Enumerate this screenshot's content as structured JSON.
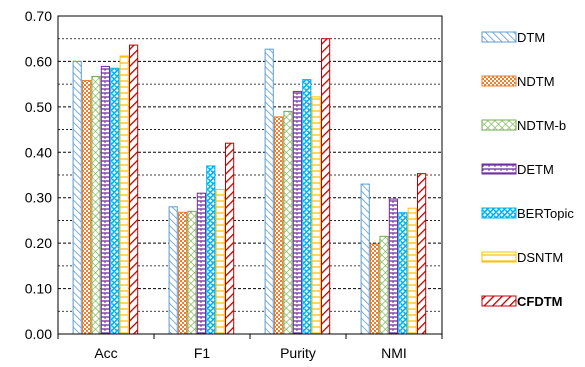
{
  "chart_data": {
    "type": "bar",
    "categories": [
      "Acc",
      "F1",
      "Purity",
      "NMI"
    ],
    "ylim": [
      0,
      0.7
    ],
    "yticks": [
      "0.00",
      "0.10",
      "0.20",
      "0.30",
      "0.40",
      "0.50",
      "0.60",
      "0.70"
    ],
    "grid": true,
    "legend_position": "right",
    "title": "",
    "xlabel": "",
    "ylabel": "",
    "series": [
      {
        "name": "DTM",
        "values": [
          0.6,
          0.28,
          0.627,
          0.33
        ],
        "color": "#5b9bd5",
        "pattern": "diag-down"
      },
      {
        "name": "NDTM",
        "values": [
          0.558,
          0.268,
          0.478,
          0.198
        ],
        "color": "#ed7d31",
        "pattern": "checker"
      },
      {
        "name": "NDTM-b",
        "values": [
          0.567,
          0.27,
          0.49,
          0.215
        ],
        "color": "#70ad47",
        "pattern": "diamond"
      },
      {
        "name": "DETM",
        "values": [
          0.589,
          0.31,
          0.534,
          0.297
        ],
        "color": "#7030a0",
        "pattern": "hlines"
      },
      {
        "name": "BERTopic",
        "values": [
          0.585,
          0.37,
          0.56,
          0.267
        ],
        "color": "#00b0f0",
        "pattern": "dots"
      },
      {
        "name": "DSNTM",
        "values": [
          0.612,
          0.318,
          0.522,
          0.277
        ],
        "color": "#ffc000",
        "pattern": "hlines-sparse"
      },
      {
        "name": "CFDTM",
        "values": [
          0.636,
          0.42,
          0.65,
          0.353
        ],
        "color": "#c00000",
        "pattern": "diag-up-thick",
        "bold": true
      }
    ]
  }
}
